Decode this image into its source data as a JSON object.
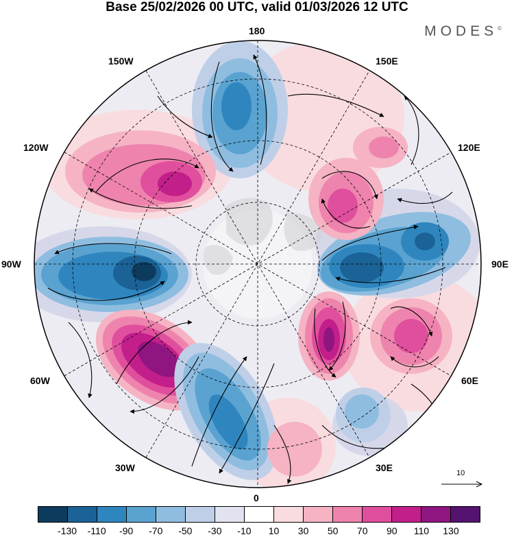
{
  "title": "Base 25/02/2026 00 UTC, valid 01/03/2026 12 UTC",
  "brand": "MODES",
  "brand_mark": "©",
  "longitude_labels": {
    "lon_180": "180",
    "lon_150E": "150E",
    "lon_120E": "120E",
    "lon_90E": "90E",
    "lon_60E": "60E",
    "lon_30E": "30E",
    "lon_0": "0",
    "lon_30W": "30W",
    "lon_60W": "60W",
    "lon_90W": "90W",
    "lon_120W": "120W",
    "lon_150W": "150W"
  },
  "reference_vector": {
    "label": "10"
  },
  "colorbar": {
    "colors": [
      "#0d3b5e",
      "#1b6296",
      "#2f86bf",
      "#5aa3d1",
      "#8fbde0",
      "#bfcfe8",
      "#e2e3f1",
      "#ffffff",
      "#f9dcdf",
      "#f5b3c4",
      "#ee84ad",
      "#e04f9d",
      "#c21f8b",
      "#8f1580",
      "#551370"
    ],
    "ticks": [
      "-130",
      "-110",
      "-90",
      "-70",
      "-50",
      "-30",
      "-10",
      "10",
      "30",
      "50",
      "70",
      "90",
      "110",
      "130"
    ]
  },
  "anomaly_centers": [
    {
      "name": "low-pacific-180",
      "value": -90
    },
    {
      "name": "high-west-pacific",
      "value": 50
    },
    {
      "name": "high-east-siberia",
      "value": 70
    },
    {
      "name": "low-central-asia",
      "value": -110
    },
    {
      "name": "low-west-siberia",
      "value": -90
    },
    {
      "name": "high-urals",
      "value": 110
    },
    {
      "name": "high-central-asia-60E",
      "value": 90
    },
    {
      "name": "low-north-africa",
      "value": -50
    },
    {
      "name": "high-west-africa",
      "value": 50
    },
    {
      "name": "low-atlantic",
      "value": -90
    },
    {
      "name": "high-north-atlantic",
      "value": 130
    },
    {
      "name": "low-north-america",
      "value": -130
    },
    {
      "name": "high-gulf-of-alaska",
      "value": 90
    }
  ]
}
